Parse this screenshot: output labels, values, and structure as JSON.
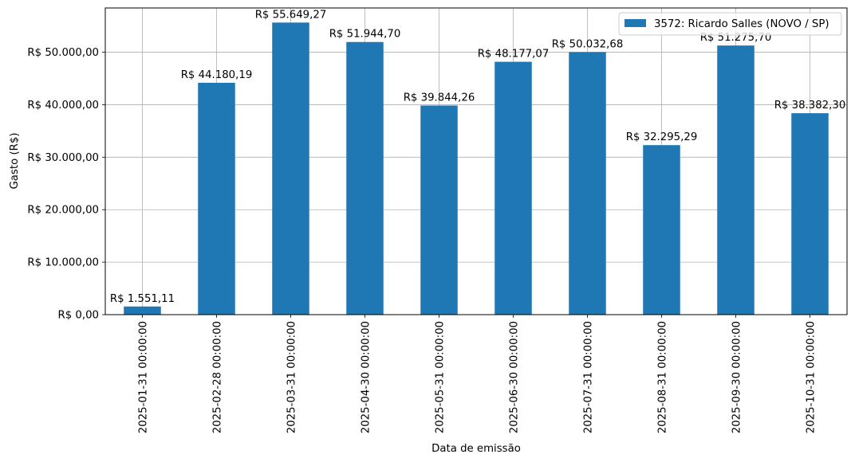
{
  "chart_data": {
    "type": "bar",
    "categories": [
      "2025-01-31 00:00:00",
      "2025-02-28 00:00:00",
      "2025-03-31 00:00:00",
      "2025-04-30 00:00:00",
      "2025-05-31 00:00:00",
      "2025-06-30 00:00:00",
      "2025-07-31 00:00:00",
      "2025-08-31 00:00:00",
      "2025-09-30 00:00:00",
      "2025-10-31 00:00:00"
    ],
    "series": [
      {
        "name": "3572: Ricardo Salles (NOVO / SP)",
        "color": "#1f77b4",
        "values": [
          1551.11,
          44180.19,
          55649.27,
          51944.7,
          39844.26,
          48177.07,
          50032.68,
          32295.29,
          51275.7,
          38382.3
        ],
        "labels": [
          "R$ 1.551,11",
          "R$ 44.180,19",
          "R$ 55.649,27",
          "R$ 51.944,70",
          "R$ 39.844,26",
          "R$ 48.177,07",
          "R$ 50.032,68",
          "R$ 32.295,29",
          "R$ 51.275,70",
          "R$ 38.382,30"
        ]
      }
    ],
    "xlabel": "Data de emissão",
    "ylabel": "Gasto (R$)",
    "ylim": [
      0,
      58431.73
    ],
    "yticks": [
      0,
      10000,
      20000,
      30000,
      40000,
      50000
    ],
    "ytick_labels": [
      "R$ 0,00",
      "R$ 10.000,00",
      "R$ 20.000,00",
      "R$ 30.000,00",
      "R$ 40.000,00",
      "R$ 50.000,00"
    ],
    "grid": true,
    "legend_position": "top-right"
  }
}
